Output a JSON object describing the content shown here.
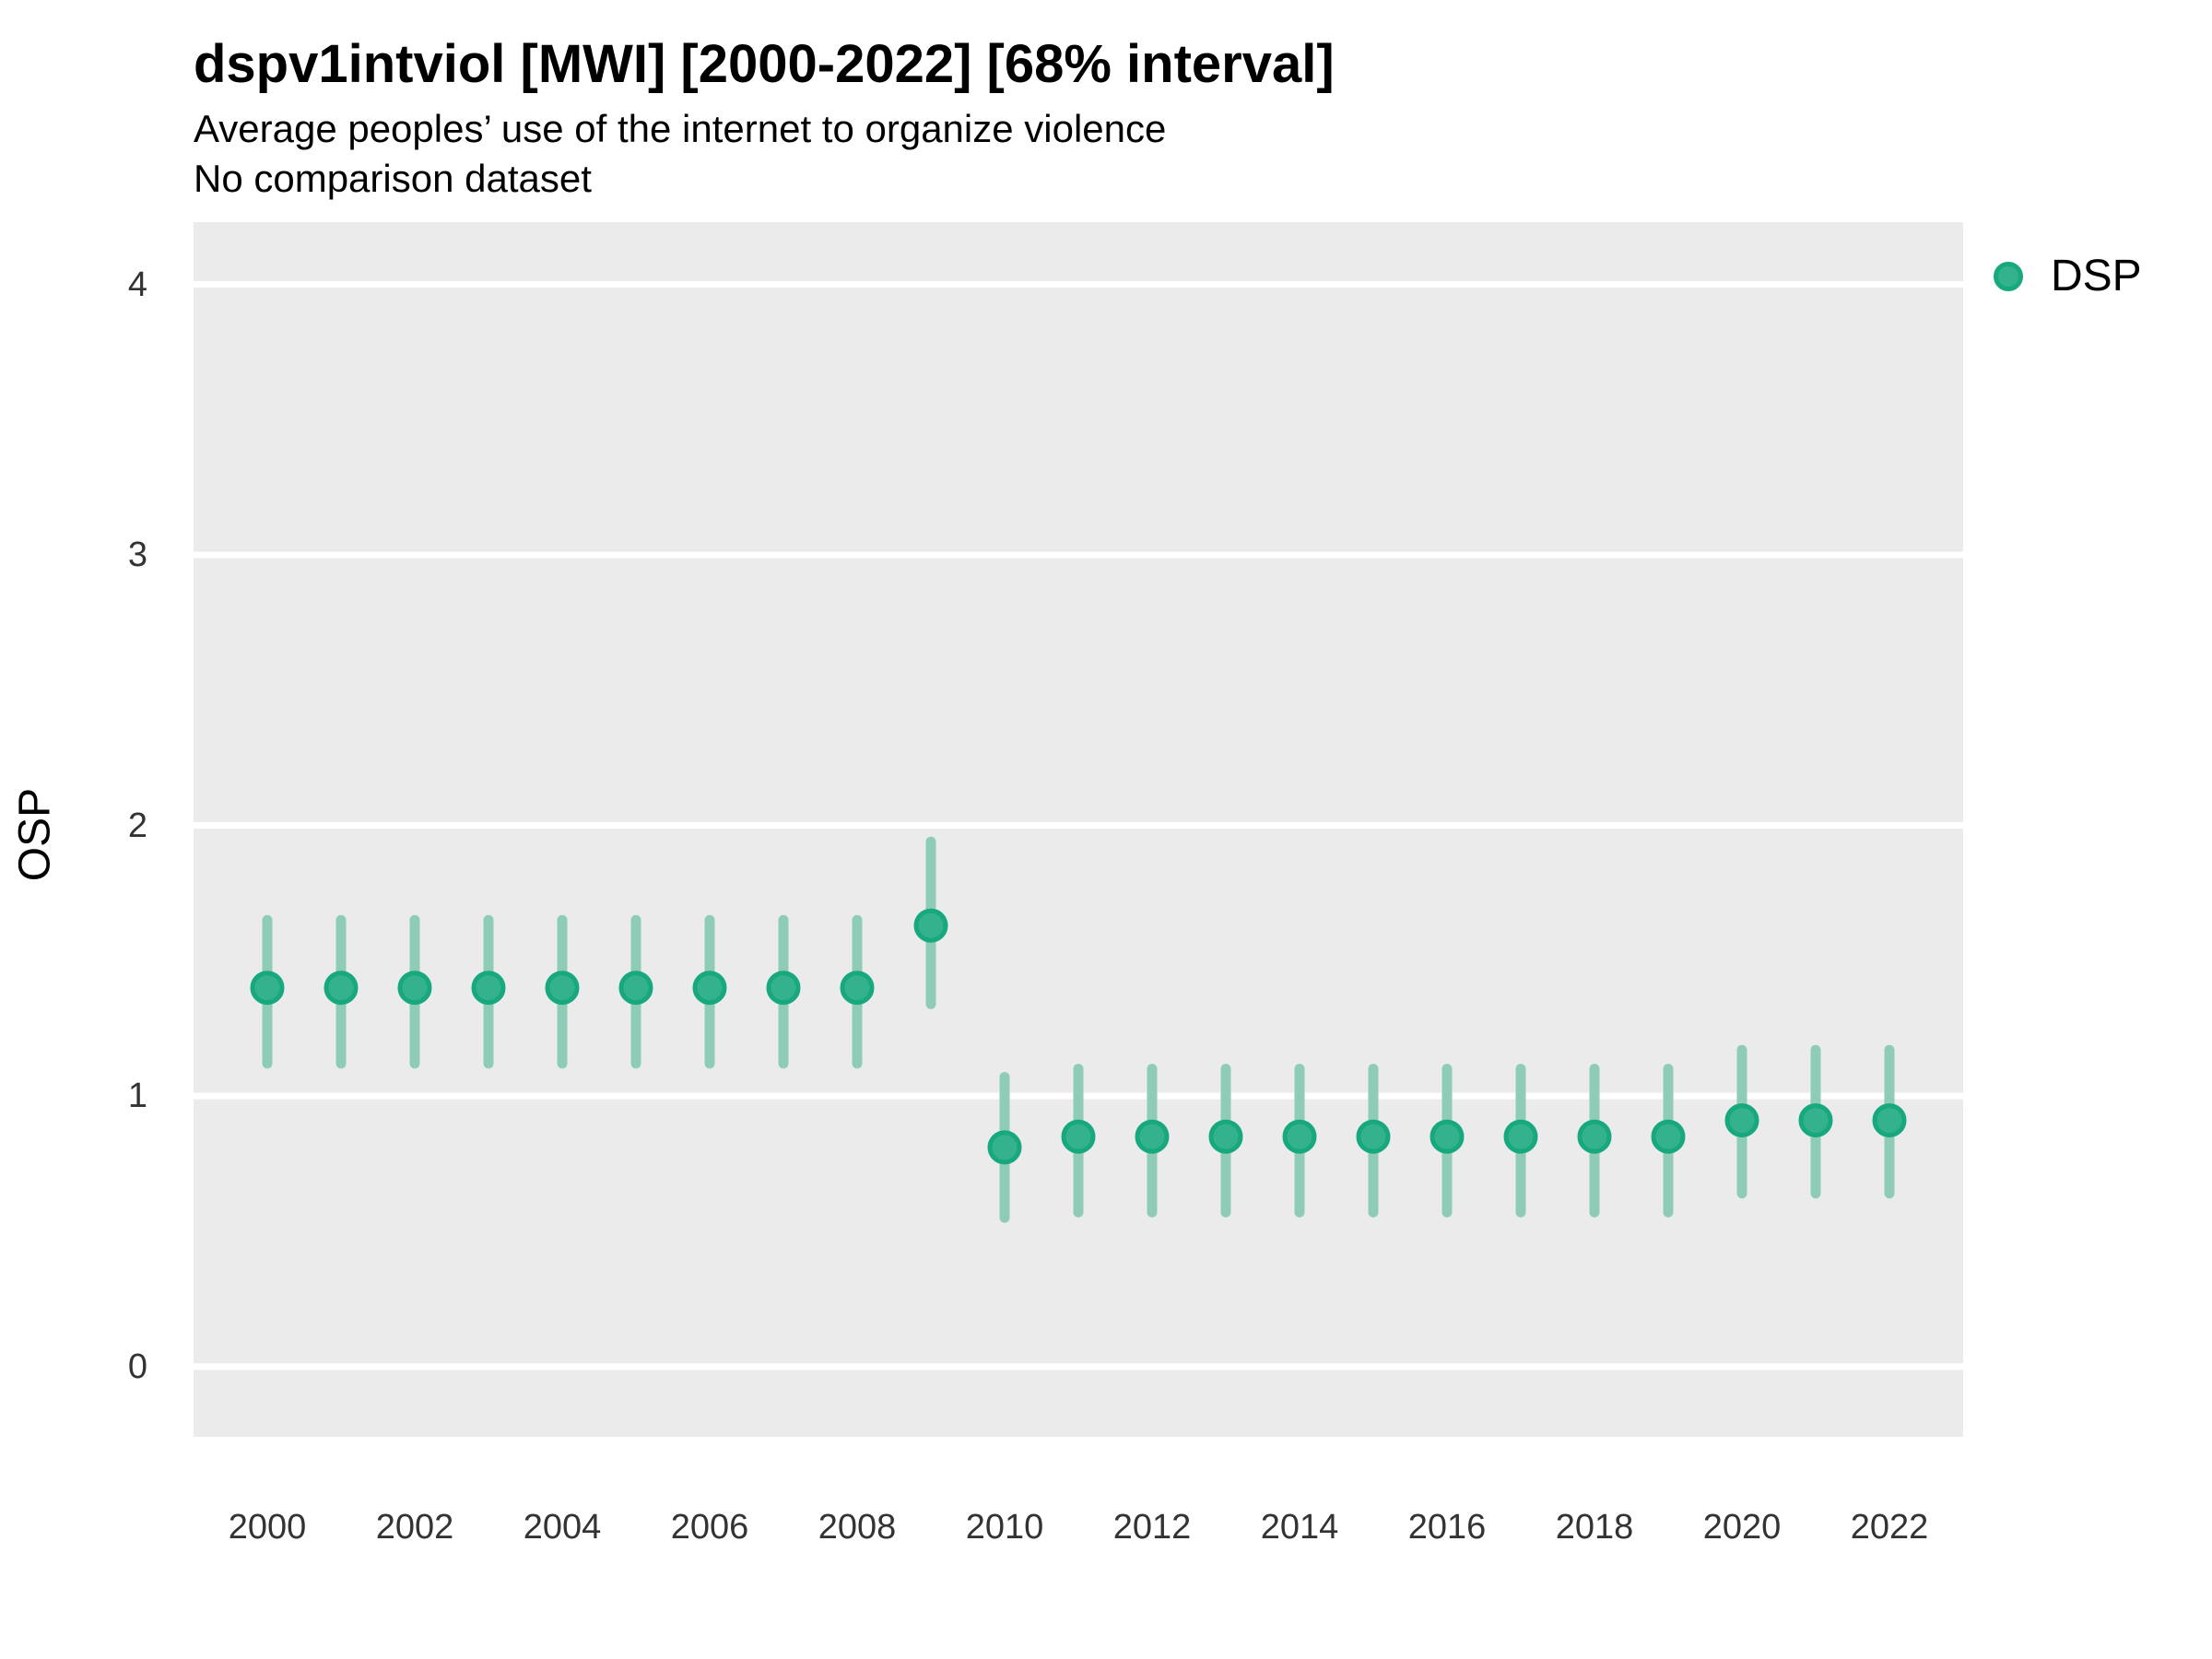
{
  "header": {
    "title": "dspv1intviol [MWI] [2000-2022] [68% interval]",
    "subtitle_line1": "Average peoples’ use of the internet to organize violence",
    "subtitle_line2": "No comparison dataset"
  },
  "legend": {
    "items": [
      {
        "label": "DSP",
        "marker": "circle-icon",
        "fill": "#33b28b",
        "ring": "#18a87e"
      }
    ]
  },
  "colors": {
    "panel_bg": "#ebebeb",
    "gridline": "#ffffff",
    "interval_bar": "#8fccb5",
    "point_fill": "#33b28b",
    "point_ring": "#18a87e",
    "tick_text": "#333333",
    "text": "#000000"
  },
  "chart_data": {
    "type": "scatter",
    "subtype": "pointrange",
    "title": "dspv1intviol [MWI] [2000-2022] [68% interval]",
    "subtitle": "Average peoples’ use of the internet to organize violence",
    "note": "No comparison dataset",
    "xlabel": "",
    "ylabel": "OSP",
    "xlim": [
      1999,
      2023
    ],
    "ylim": [
      -0.26,
      4.23
    ],
    "yticks": [
      0,
      1,
      2,
      3,
      4
    ],
    "xticks": [
      2000,
      2002,
      2004,
      2006,
      2008,
      2010,
      2012,
      2014,
      2016,
      2018,
      2020,
      2022
    ],
    "grid": "major-horizontal-white-on-gray",
    "legend_position": "right-top",
    "interval_level": "68%",
    "series": [
      {
        "name": "DSP",
        "x": [
          2000,
          2001,
          2002,
          2003,
          2004,
          2005,
          2006,
          2007,
          2008,
          2009,
          2010,
          2011,
          2012,
          2013,
          2014,
          2015,
          2016,
          2017,
          2018,
          2019,
          2020,
          2021,
          2022
        ],
        "y": [
          1.4,
          1.4,
          1.4,
          1.4,
          1.4,
          1.4,
          1.4,
          1.4,
          1.4,
          1.63,
          0.81,
          0.85,
          0.85,
          0.85,
          0.85,
          0.85,
          0.85,
          0.85,
          0.85,
          0.85,
          0.91,
          0.91,
          0.91
        ],
        "y_lo": [
          1.12,
          1.12,
          1.12,
          1.12,
          1.12,
          1.12,
          1.12,
          1.12,
          1.12,
          1.34,
          0.55,
          0.57,
          0.57,
          0.57,
          0.57,
          0.57,
          0.57,
          0.57,
          0.57,
          0.57,
          0.64,
          0.64,
          0.64
        ],
        "y_hi": [
          1.65,
          1.65,
          1.65,
          1.65,
          1.65,
          1.65,
          1.65,
          1.65,
          1.65,
          1.94,
          1.07,
          1.1,
          1.1,
          1.1,
          1.1,
          1.1,
          1.1,
          1.1,
          1.1,
          1.1,
          1.17,
          1.17,
          1.17
        ]
      }
    ]
  }
}
